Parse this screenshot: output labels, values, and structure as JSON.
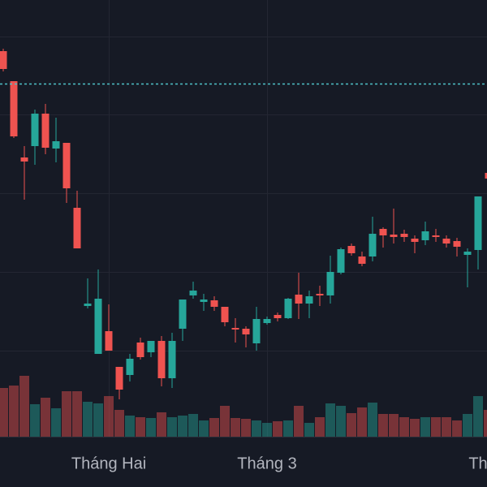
{
  "chart_data": {
    "type": "candlestick",
    "categories": [
      null,
      null,
      null,
      null,
      null,
      null,
      null,
      null,
      null,
      null,
      "Tháng Hai",
      null,
      null,
      null,
      null,
      null,
      null,
      null,
      null,
      null,
      null,
      null,
      null,
      null,
      null,
      "Tháng 3",
      null,
      null,
      null,
      null,
      null,
      null,
      null,
      null,
      null,
      null,
      null,
      null,
      null,
      null,
      null,
      null,
      null,
      null,
      null,
      "Th",
      null
    ],
    "open": [
      537,
      500,
      406,
      420,
      460,
      417,
      424,
      344,
      223,
      164,
      192,
      148,
      138,
      178,
      166,
      180,
      134,
      195,
      236,
      228,
      230,
      222,
      196,
      195,
      177,
      202,
      212,
      208,
      237,
      226,
      238,
      236,
      264,
      297,
      284,
      284,
      318,
      311,
      312,
      306,
      304,
      310,
      306,
      303,
      286,
      292,
      387
    ],
    "high": [
      540,
      500,
      420,
      465,
      472,
      455,
      424,
      365,
      257,
      268,
      225,
      148,
      164,
      184,
      180,
      186,
      190,
      231,
      253,
      238,
      235,
      222,
      208,
      198,
      222,
      210,
      215,
      233,
      264,
      242,
      248,
      285,
      295,
      300,
      290,
      333,
      320,
      343,
      317,
      310,
      327,
      318,
      310,
      307,
      294,
      358,
      392
    ],
    "low": [
      512,
      430,
      354,
      397,
      410,
      400,
      350,
      294,
      220,
      164,
      168,
      108,
      130,
      157,
      160,
      124,
      122,
      180,
      232,
      217,
      217,
      198,
      178,
      172,
      168,
      200,
      204,
      207,
      207,
      208,
      223,
      226,
      262,
      285,
      272,
      278,
      295,
      300,
      302,
      288,
      298,
      302,
      295,
      284,
      246,
      268,
      375
    ],
    "close": [
      515,
      432,
      401,
      460,
      418,
      426,
      368,
      294,
      226,
      232,
      168,
      120,
      158,
      160,
      180,
      134,
      180,
      231,
      242,
      231,
      222,
      203,
      194,
      188,
      207,
      207,
      208,
      232,
      226,
      235,
      236,
      265,
      293,
      288,
      275,
      312,
      310,
      308,
      308,
      302,
      315,
      308,
      300,
      296,
      290,
      358,
      380
    ],
    "volume": [
      60,
      63,
      75,
      40,
      48,
      35,
      56,
      56,
      43,
      41,
      50,
      33,
      26,
      24,
      23,
      30,
      24,
      26,
      28,
      20,
      23,
      38,
      23,
      22,
      20,
      17,
      19,
      20,
      38,
      17,
      24,
      41,
      38,
      29,
      36,
      42,
      28,
      28,
      24,
      22,
      24,
      24,
      24,
      20,
      28,
      50,
      33
    ],
    "up_color": "#26a69a",
    "down_color": "#ef5350",
    "ylim": [
      62,
      600
    ],
    "yticks": [
      555,
      459,
      362,
      265,
      168
    ],
    "volume_lim": [
      0,
      538
    ],
    "price_line": 497,
    "price_line_color": "#4fc3c8",
    "grid": true
  }
}
